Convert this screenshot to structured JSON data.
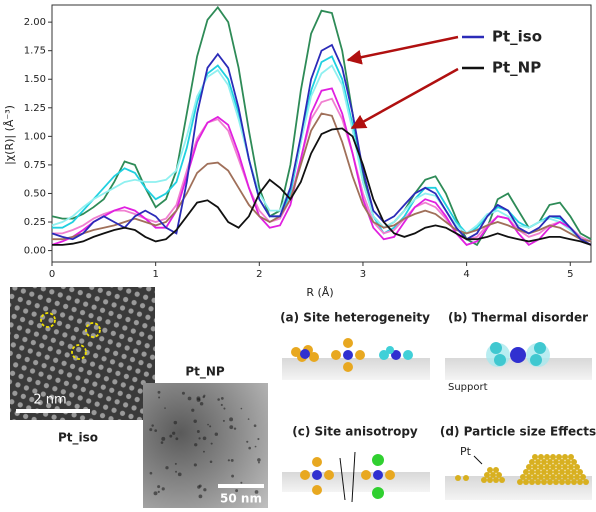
{
  "chart_data": {
    "type": "line",
    "xlabel": "R (Å)",
    "ylabel": "|χ(R)| (Å⁻³)",
    "x": [
      0,
      0.1,
      0.2,
      0.3,
      0.4,
      0.5,
      0.6,
      0.7,
      0.8,
      0.9,
      1.0,
      1.1,
      1.2,
      1.3,
      1.4,
      1.5,
      1.6,
      1.7,
      1.8,
      1.9,
      2.0,
      2.1,
      2.2,
      2.3,
      2.4,
      2.5,
      2.6,
      2.7,
      2.8,
      2.9,
      3.0,
      3.1,
      3.2,
      3.3,
      3.4,
      3.5,
      3.6,
      3.7,
      3.8,
      3.9,
      4.0,
      4.1,
      4.2,
      4.3,
      4.4,
      4.5,
      4.6,
      4.7,
      4.8,
      4.9,
      5.0,
      5.1,
      5.2
    ],
    "series": [
      {
        "color": "#2e8b57",
        "values": [
          0.3,
          0.28,
          0.28,
          0.32,
          0.38,
          0.45,
          0.6,
          0.78,
          0.75,
          0.55,
          0.38,
          0.45,
          0.7,
          1.2,
          1.7,
          2.02,
          2.13,
          2.0,
          1.6,
          1.05,
          0.55,
          0.3,
          0.35,
          0.75,
          1.4,
          1.9,
          2.1,
          2.08,
          1.75,
          1.2,
          0.65,
          0.3,
          0.2,
          0.25,
          0.35,
          0.5,
          0.62,
          0.65,
          0.5,
          0.28,
          0.1,
          0.05,
          0.2,
          0.45,
          0.5,
          0.35,
          0.2,
          0.25,
          0.4,
          0.42,
          0.3,
          0.15,
          0.1
        ]
      },
      {
        "color": "#20d0e0",
        "values": [
          0.2,
          0.2,
          0.25,
          0.35,
          0.45,
          0.55,
          0.65,
          0.72,
          0.68,
          0.55,
          0.45,
          0.5,
          0.6,
          0.9,
          1.3,
          1.55,
          1.62,
          1.5,
          1.2,
          0.8,
          0.45,
          0.3,
          0.3,
          0.5,
          0.95,
          1.4,
          1.65,
          1.7,
          1.5,
          1.1,
          0.6,
          0.3,
          0.15,
          0.2,
          0.3,
          0.45,
          0.55,
          0.55,
          0.4,
          0.25,
          0.15,
          0.2,
          0.3,
          0.38,
          0.35,
          0.25,
          0.2,
          0.25,
          0.3,
          0.28,
          0.2,
          0.12,
          0.08
        ]
      },
      {
        "color": "#8ff0f0",
        "values": [
          0.22,
          0.25,
          0.3,
          0.38,
          0.45,
          0.5,
          0.55,
          0.6,
          0.62,
          0.6,
          0.6,
          0.62,
          0.7,
          1.0,
          1.35,
          1.52,
          1.58,
          1.45,
          1.15,
          0.8,
          0.5,
          0.35,
          0.35,
          0.55,
          0.95,
          1.35,
          1.55,
          1.62,
          1.45,
          1.05,
          0.6,
          0.3,
          0.2,
          0.25,
          0.35,
          0.45,
          0.5,
          0.48,
          0.35,
          0.22,
          0.15,
          0.22,
          0.32,
          0.35,
          0.3,
          0.22,
          0.2,
          0.25,
          0.28,
          0.25,
          0.18,
          0.1,
          0.08
        ]
      },
      {
        "color": "#f080d0",
        "values": [
          0.15,
          0.15,
          0.18,
          0.22,
          0.28,
          0.32,
          0.35,
          0.35,
          0.32,
          0.28,
          0.25,
          0.28,
          0.4,
          0.7,
          0.98,
          1.12,
          1.15,
          1.05,
          0.8,
          0.55,
          0.35,
          0.25,
          0.28,
          0.45,
          0.8,
          1.15,
          1.3,
          1.33,
          1.15,
          0.85,
          0.5,
          0.25,
          0.15,
          0.18,
          0.28,
          0.38,
          0.42,
          0.38,
          0.28,
          0.15,
          0.1,
          0.12,
          0.22,
          0.3,
          0.28,
          0.18,
          0.12,
          0.15,
          0.22,
          0.25,
          0.2,
          0.12,
          0.08
        ]
      },
      {
        "color": "#e020e0",
        "values": [
          0.05,
          0.08,
          0.12,
          0.18,
          0.25,
          0.3,
          0.35,
          0.38,
          0.35,
          0.28,
          0.2,
          0.2,
          0.35,
          0.65,
          0.95,
          1.12,
          1.17,
          1.1,
          0.85,
          0.55,
          0.3,
          0.2,
          0.22,
          0.4,
          0.8,
          1.2,
          1.4,
          1.42,
          1.2,
          0.85,
          0.45,
          0.2,
          0.1,
          0.12,
          0.25,
          0.38,
          0.45,
          0.42,
          0.3,
          0.15,
          0.05,
          0.08,
          0.2,
          0.3,
          0.28,
          0.15,
          0.05,
          0.1,
          0.2,
          0.25,
          0.2,
          0.1,
          0.05
        ]
      },
      {
        "color": "#a0705a",
        "values": [
          0.1,
          0.1,
          0.12,
          0.15,
          0.18,
          0.2,
          0.22,
          0.25,
          0.28,
          0.25,
          0.22,
          0.25,
          0.35,
          0.5,
          0.68,
          0.76,
          0.77,
          0.7,
          0.55,
          0.4,
          0.3,
          0.25,
          0.3,
          0.45,
          0.75,
          1.05,
          1.2,
          1.18,
          0.95,
          0.65,
          0.4,
          0.25,
          0.2,
          0.22,
          0.28,
          0.32,
          0.35,
          0.32,
          0.25,
          0.18,
          0.15,
          0.18,
          0.22,
          0.25,
          0.22,
          0.18,
          0.15,
          0.18,
          0.22,
          0.2,
          0.15,
          0.1,
          0.08
        ]
      },
      {
        "name": "Pt_iso",
        "color": "#2b2bb8",
        "values": [
          0.15,
          0.12,
          0.1,
          0.15,
          0.25,
          0.3,
          0.25,
          0.2,
          0.3,
          0.35,
          0.3,
          0.2,
          0.15,
          0.6,
          1.2,
          1.6,
          1.72,
          1.6,
          1.25,
          0.8,
          0.45,
          0.3,
          0.3,
          0.55,
          1.0,
          1.5,
          1.75,
          1.8,
          1.6,
          1.2,
          0.7,
          0.35,
          0.25,
          0.3,
          0.4,
          0.5,
          0.55,
          0.5,
          0.35,
          0.2,
          0.1,
          0.15,
          0.3,
          0.4,
          0.35,
          0.2,
          0.15,
          0.2,
          0.3,
          0.3,
          0.2,
          0.1,
          0.05
        ]
      },
      {
        "name": "Pt_NP",
        "color": "#111111",
        "values": [
          0.05,
          0.05,
          0.06,
          0.08,
          0.12,
          0.15,
          0.18,
          0.2,
          0.18,
          0.12,
          0.08,
          0.1,
          0.18,
          0.3,
          0.42,
          0.44,
          0.38,
          0.25,
          0.2,
          0.3,
          0.5,
          0.62,
          0.55,
          0.45,
          0.6,
          0.85,
          1.02,
          1.06,
          1.07,
          1.0,
          0.75,
          0.45,
          0.25,
          0.15,
          0.12,
          0.15,
          0.2,
          0.22,
          0.2,
          0.15,
          0.1,
          0.1,
          0.12,
          0.15,
          0.12,
          0.1,
          0.08,
          0.1,
          0.12,
          0.12,
          0.1,
          0.08,
          0.05
        ]
      }
    ],
    "xlim": [
      0,
      5.2
    ],
    "xticks": [
      0,
      1,
      2,
      3,
      4,
      5
    ],
    "ylim": [
      -0.1,
      2.15
    ],
    "yticks": [
      {
        "value": 0,
        "label": "0.00"
      },
      {
        "value": 0.25,
        "label": "0.25"
      },
      {
        "value": 0.5,
        "label": "0.50"
      },
      {
        "value": 0.75,
        "label": "0.75"
      },
      {
        "value": 1,
        "label": "1.00"
      },
      {
        "value": 1.25,
        "label": "1.25"
      },
      {
        "value": 1.5,
        "label": "1.50"
      },
      {
        "value": 1.75,
        "label": "1.75"
      },
      {
        "value": 2,
        "label": "2.00"
      }
    ]
  },
  "figure": {
    "tem_iso": {
      "scale": "2 nm",
      "label": "Pt_iso"
    },
    "tem_np": {
      "scale": "50 nm",
      "label": "Pt_NP"
    },
    "panel_a": "(a) Site heterogeneity",
    "panel_b": {
      "title": "(b) Thermal disorder",
      "support": "Support"
    },
    "panel_c": "(c) Site anisotropy",
    "panel_d": {
      "title": "(d) Particle size Effects",
      "pt": "Pt"
    }
  }
}
